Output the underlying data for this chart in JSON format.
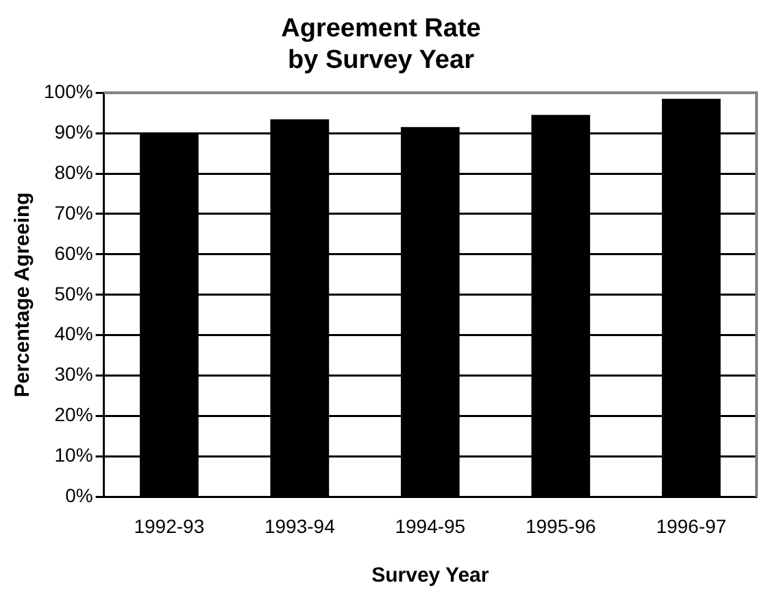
{
  "chart_data": {
    "type": "bar",
    "title": "Agreement Rate\nby Survey Year",
    "xlabel": "Survey Year",
    "ylabel": "Percentage Agreeing",
    "categories": [
      "1992-93",
      "1993-94",
      "1994-95",
      "1995-96",
      "1996-97"
    ],
    "values": [
      90,
      93.4,
      91.5,
      94.5,
      98.5
    ],
    "color": "#000000",
    "ylim": [
      0,
      100
    ],
    "yticks": [
      {
        "value": 0,
        "label": "0%"
      },
      {
        "value": 10,
        "label": "10%"
      },
      {
        "value": 20,
        "label": "20%"
      },
      {
        "value": 30,
        "label": "30%"
      },
      {
        "value": 40,
        "label": "40%"
      },
      {
        "value": 50,
        "label": "50%"
      },
      {
        "value": 60,
        "label": "60%"
      },
      {
        "value": 70,
        "label": "70%"
      },
      {
        "value": 80,
        "label": "80%"
      },
      {
        "value": 90,
        "label": "90%"
      },
      {
        "value": 100,
        "label": "100%"
      }
    ],
    "grid": "y"
  }
}
